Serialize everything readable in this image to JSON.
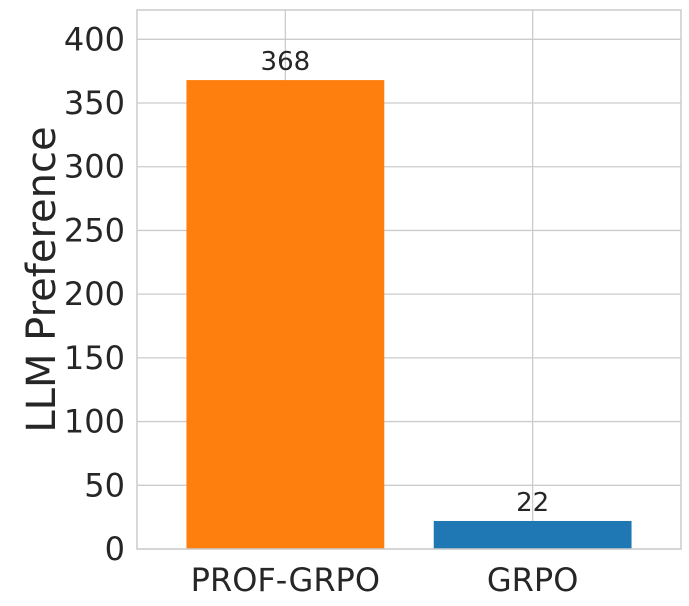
{
  "chart_data": {
    "type": "bar",
    "title": "",
    "xlabel": "",
    "ylabel": "LLM Preference",
    "categories": [
      "PROF-GRPO",
      "GRPO"
    ],
    "values": [
      368,
      22
    ],
    "data_labels": [
      "368",
      "22"
    ],
    "bar_colors": [
      "#ff7f0e",
      "#1f77b4"
    ],
    "ylim": [
      0,
      423
    ],
    "yticks": [
      0,
      50,
      100,
      150,
      200,
      250,
      300,
      350,
      400
    ],
    "ytick_labels": [
      "0",
      "50",
      "100",
      "150",
      "200",
      "250",
      "300",
      "350",
      "400"
    ],
    "grid": true,
    "grid_color": "#cccccc",
    "spine_color": "#cccccc",
    "background": "#ffffff"
  }
}
